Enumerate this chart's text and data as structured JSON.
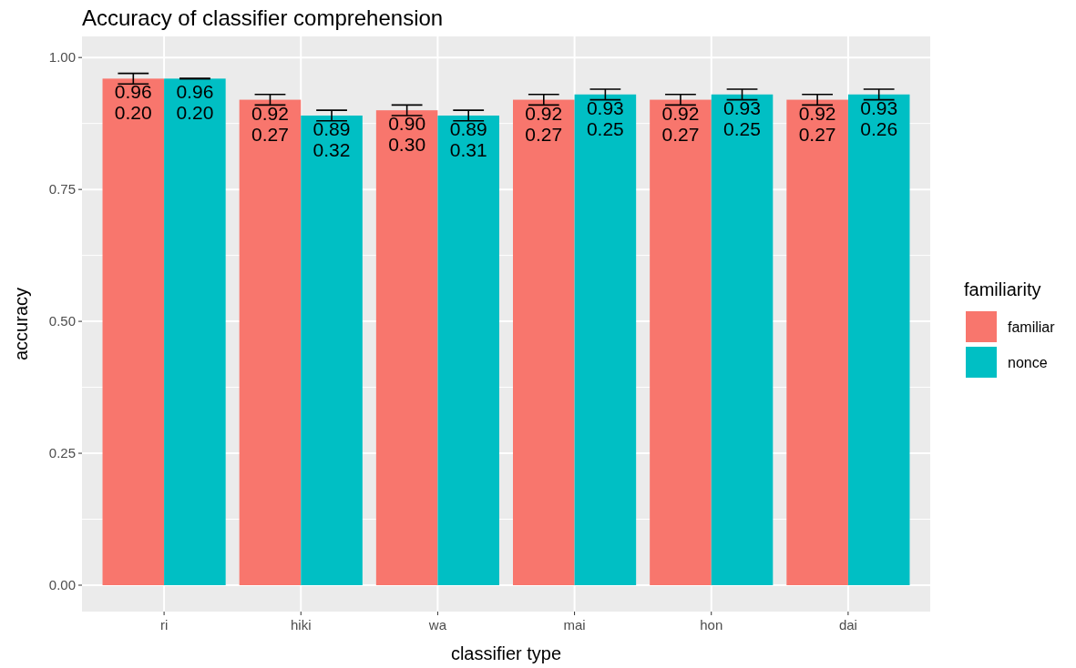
{
  "chart_data": {
    "type": "bar",
    "title": "Accuracy of classifier comprehension",
    "xlabel": "classifier type",
    "ylabel": "accuracy",
    "legend_title": "familiarity",
    "categories": [
      "ri",
      "hiki",
      "wa",
      "mai",
      "hon",
      "dai"
    ],
    "series": [
      {
        "name": "familiar",
        "color": "#f8766d",
        "values": [
          0.96,
          0.92,
          0.9,
          0.92,
          0.92,
          0.92
        ],
        "errors": [
          0.01,
          0.01,
          0.01,
          0.01,
          0.01,
          0.01
        ],
        "value_labels": [
          "0.96\n0.20",
          "0.92\n0.27",
          "0.90\n0.30",
          "0.92\n0.27",
          "0.92\n0.27",
          "0.92\n0.27"
        ]
      },
      {
        "name": "nonce",
        "color": "#00bfc4",
        "values": [
          0.96,
          0.89,
          0.89,
          0.93,
          0.93,
          0.93
        ],
        "errors": [
          0,
          0.01,
          0.01,
          0.01,
          0.01,
          0.01
        ],
        "value_labels": [
          "0.96\n0.20",
          "0.89\n0.32",
          "0.89\n0.31",
          "0.93\n0.25",
          "0.93\n0.25",
          "0.93\n0.26"
        ]
      }
    ],
    "ylim": [
      -0.05,
      1.04
    ],
    "yticks": [
      {
        "value": 0,
        "label": "0.00"
      },
      {
        "value": 0.25,
        "label": "0.25"
      },
      {
        "value": 0.5,
        "label": "0.50"
      },
      {
        "value": 0.75,
        "label": "0.75"
      },
      {
        "value": 1,
        "label": "1.00"
      }
    ],
    "grid": true,
    "legend": "right"
  }
}
